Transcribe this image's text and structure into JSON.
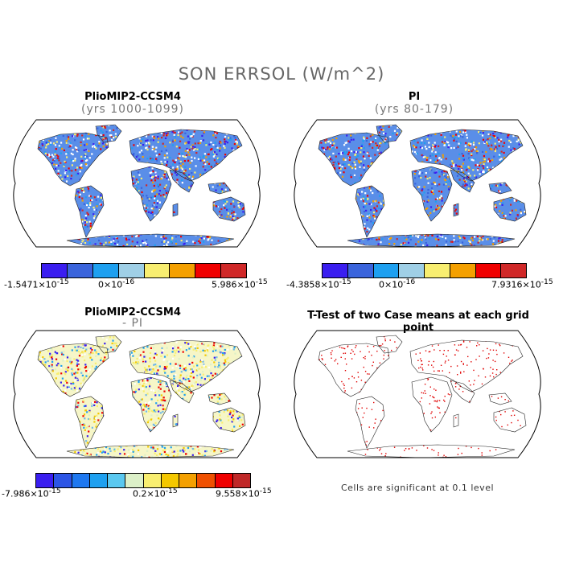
{
  "title": "SON ERRSOL (W/m^2)",
  "panels": [
    {
      "title": "PlioMIP2-CCSM4",
      "subtitle": "(yrs 1000-1099)"
    },
    {
      "title": "PI",
      "subtitle": "(yrs 80-179)"
    },
    {
      "title": "PlioMIP2-CCSM4",
      "subtitle": "- PI"
    },
    {
      "title": "T-Test of two Case means at each grid point",
      "subtitle": ""
    }
  ],
  "colorbars": {
    "cb1": {
      "colors": [
        "#3a1ef0",
        "#3a64dc",
        "#1ea0f0",
        "#9fcfe6",
        "#f8ee70",
        "#f4a000",
        "#f00000",
        "#d02828"
      ],
      "labels": {
        "min": "-1.5471×10",
        "min_exp": "-15",
        "mid": "0×10",
        "mid_exp": "-16",
        "max": "5.986×10",
        "max_exp": "-15"
      }
    },
    "cb2": {
      "colors": [
        "#3a1ef0",
        "#3a64dc",
        "#1ea0f0",
        "#9fcfe6",
        "#f8ee70",
        "#f4a000",
        "#f00000",
        "#d02828"
      ],
      "labels": {
        "min": "-4.3858×10",
        "min_exp": "-15",
        "mid": "0×10",
        "mid_exp": "-16",
        "max": "7.9316×10",
        "max_exp": "-15"
      }
    },
    "cb3": {
      "colors": [
        "#3a1ef0",
        "#2c55e6",
        "#1e78f0",
        "#1ea0f0",
        "#5ac8f0",
        "#dcf0c8",
        "#f8ee70",
        "#f4c800",
        "#f4a000",
        "#f05000",
        "#f00000",
        "#c02828"
      ],
      "labels": {
        "min": "-7.986×10",
        "min_exp": "-15",
        "mid": "0.2×10",
        "mid_exp": "-15",
        "max": "9.558×10",
        "max_exp": "-15"
      }
    }
  },
  "note": "Cells are significant at 0.1 level",
  "colors": {
    "sig_marker": "#e00000",
    "land_mixed_blue": "#3060d8",
    "land_mixed_red": "#e02020",
    "land_diff_base": "#f6f6c8",
    "land_diff_blue": "#70b8e8"
  }
}
